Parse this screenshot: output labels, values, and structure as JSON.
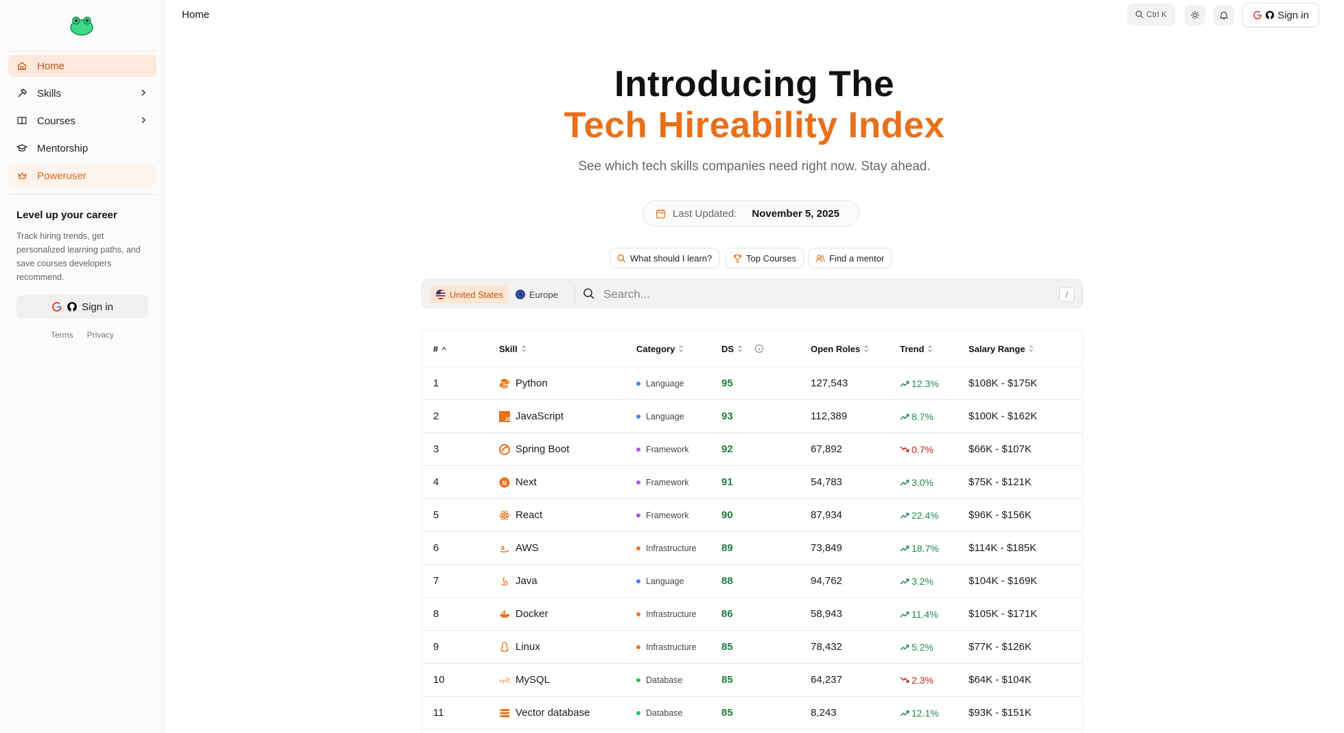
{
  "sidebar": {
    "nav": [
      {
        "label": "Home",
        "icon": "home-icon",
        "active": true
      },
      {
        "label": "Skills",
        "icon": "hammer-icon",
        "has_submenu": true
      },
      {
        "label": "Courses",
        "icon": "book-icon",
        "has_submenu": true
      },
      {
        "label": "Mentorship",
        "icon": "graduation-cap-icon"
      },
      {
        "label": "Poweruser",
        "icon": "crown-icon",
        "highlight": true
      }
    ],
    "promo_title": "Level up your career",
    "promo_text": "Track hiring trends, get personalized learning paths, and save courses developers recommend.",
    "signin_label": "Sign in",
    "terms": "Terms",
    "privacy": "Privacy"
  },
  "topbar": {
    "breadcrumb": "Home",
    "search_shortcut": "Ctrl K",
    "signin_label": "Sign in"
  },
  "hero": {
    "line1": "Introducing The",
    "line2": "Tech Hireability Index",
    "subtitle": "See which tech skills companies need right now. Stay ahead.",
    "updated_label": "Last Updated:",
    "updated_value": "November 5, 2025"
  },
  "actions": [
    {
      "label": "What should I learn?",
      "icon": "search-icon"
    },
    {
      "label": "Top Courses",
      "icon": "trophy-icon"
    },
    {
      "label": "Find a mentor",
      "icon": "users-icon"
    }
  ],
  "search": {
    "regions": [
      {
        "label": "United States",
        "icon": "us-flag-icon",
        "selected": true
      },
      {
        "label": "Europe",
        "icon": "eu-flag-icon",
        "selected": false
      }
    ],
    "placeholder": "Search...",
    "shortcut": "/"
  },
  "table": {
    "headers": {
      "num": "#",
      "skill": "Skill",
      "category": "Category",
      "ds": "DS",
      "roles": "Open Roles",
      "trend": "Trend",
      "salary": "Salary Range"
    },
    "rows": [
      {
        "num": "1",
        "skill": "Python",
        "category": "Language",
        "ds": "95",
        "roles": "127,543",
        "trend": "12.3%",
        "dir": "up",
        "salary": "$108K - $175K"
      },
      {
        "num": "2",
        "skill": "JavaScript",
        "category": "Language",
        "ds": "93",
        "roles": "112,389",
        "trend": "8.7%",
        "dir": "up",
        "salary": "$100K - $162K"
      },
      {
        "num": "3",
        "skill": "Spring Boot",
        "category": "Framework",
        "ds": "92",
        "roles": "67,892",
        "trend": "0.7%",
        "dir": "down",
        "salary": "$66K - $107K"
      },
      {
        "num": "4",
        "skill": "Next",
        "category": "Framework",
        "ds": "91",
        "roles": "54,783",
        "trend": "3.0%",
        "dir": "up",
        "salary": "$75K - $121K"
      },
      {
        "num": "5",
        "skill": "React",
        "category": "Framework",
        "ds": "90",
        "roles": "87,934",
        "trend": "22.4%",
        "dir": "up",
        "salary": "$96K - $156K"
      },
      {
        "num": "6",
        "skill": "AWS",
        "category": "Infrastructure",
        "ds": "89",
        "roles": "73,849",
        "trend": "18.7%",
        "dir": "up",
        "salary": "$114K - $185K"
      },
      {
        "num": "7",
        "skill": "Java",
        "category": "Language",
        "ds": "88",
        "roles": "94,762",
        "trend": "3.2%",
        "dir": "up",
        "salary": "$104K - $169K"
      },
      {
        "num": "8",
        "skill": "Docker",
        "category": "Infrastructure",
        "ds": "86",
        "roles": "58,943",
        "trend": "11.4%",
        "dir": "up",
        "salary": "$105K - $171K"
      },
      {
        "num": "9",
        "skill": "Linux",
        "category": "Infrastructure",
        "ds": "85",
        "roles": "78,432",
        "trend": "5.2%",
        "dir": "up",
        "salary": "$77K - $126K"
      },
      {
        "num": "10",
        "skill": "MySQL",
        "category": "Database",
        "ds": "85",
        "roles": "64,237",
        "trend": "2.3%",
        "dir": "down",
        "salary": "$64K - $104K"
      },
      {
        "num": "11",
        "skill": "Vector database",
        "category": "Database",
        "ds": "85",
        "roles": "8,243",
        "trend": "12.1%",
        "dir": "up",
        "salary": "$93K - $151K"
      }
    ]
  },
  "colors": {
    "accent": "#e8701a",
    "language": "#3b82f6",
    "framework": "#a855f7",
    "infrastructure": "#f97316",
    "database": "#22c55e",
    "up": "#1f8a4c",
    "down": "#c42020",
    "ds": "#1f7a3d"
  }
}
